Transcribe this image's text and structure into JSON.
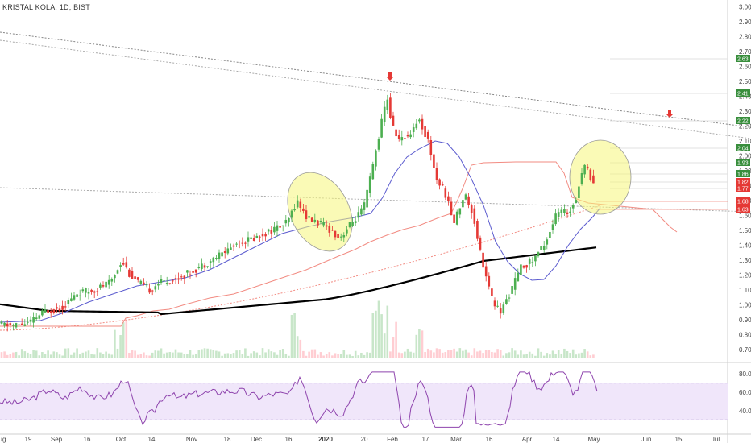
{
  "symbol_title": "KRISTAL KOLA, 1D, BIST",
  "chart_data": {
    "type": "candlestick",
    "title": "KRISTAL KOLA, 1D, BIST",
    "price_axis": {
      "ticks": [
        "3.00",
        "2.90",
        "2.80",
        "2.70",
        "2.60",
        "2.50",
        "2.40",
        "2.30",
        "2.20",
        "2.10",
        "2.00",
        "1.90",
        "1.80",
        "1.70",
        "1.60",
        "1.50",
        "1.40",
        "1.30",
        "1.20",
        "1.10",
        "1.00",
        "0.90",
        "0.80",
        "0.70"
      ],
      "ylim": [
        0.64,
        3.02
      ]
    },
    "rsi_axis": {
      "ticks": [
        "80.00",
        "60.00",
        "40.00"
      ],
      "ylim": [
        18,
        88
      ],
      "band": [
        30,
        70
      ]
    },
    "time_axis": {
      "ticks": [
        "ug",
        "19",
        "Sep",
        "16",
        "Oct",
        "14",
        "Nov",
        "18",
        "Dec",
        "16",
        "2020",
        "20",
        "Feb",
        "17",
        "Mar",
        "16",
        "Apr",
        "14",
        "May",
        "Jun",
        "15",
        "Jul"
      ]
    },
    "price_labels": [
      {
        "text": "2.63",
        "color": "#388e3c"
      },
      {
        "text": "2.41",
        "color": "#388e3c"
      },
      {
        "text": "2.22",
        "color": "#388e3c"
      },
      {
        "text": "2.04",
        "color": "#388e3c"
      },
      {
        "text": "1.93",
        "color": "#388e3c"
      },
      {
        "text": "1.86",
        "color": "#388e3c"
      },
      {
        "text": "1.82",
        "color": "#e53935"
      },
      {
        "text": "1.77",
        "color": "#e53935"
      },
      {
        "text": "1.68",
        "color": "#e53935"
      },
      {
        "text": "1.63",
        "color": "#e53935"
      }
    ],
    "colors": {
      "up": "#4caf50",
      "down": "#e53935",
      "ma_blue": "#5c5ccf",
      "ma_black": "#000000",
      "stop_red": "#f28b82",
      "rsi": "#8e44ad",
      "rsi_band": "#f0e6fa",
      "volume_up": "#c8e6c9",
      "volume_down": "#ffcdd2",
      "ellipse": "#f5f57a"
    }
  }
}
